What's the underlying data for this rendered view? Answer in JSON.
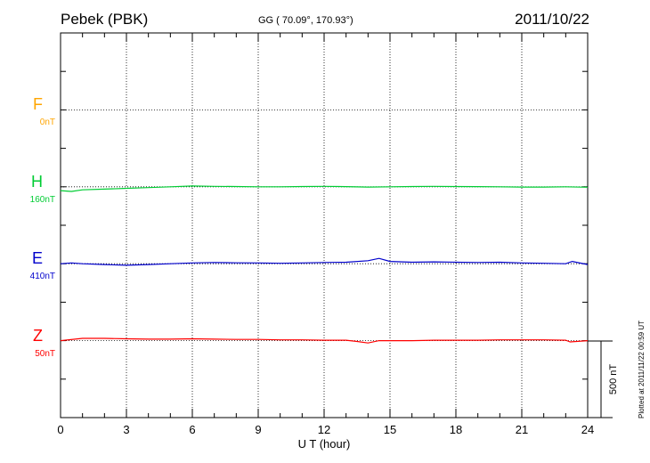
{
  "header": {
    "station": "Pebek (PBK)",
    "coords": "GG ( 70.09°, 170.93°)",
    "date": "2011/10/22"
  },
  "footer": {
    "plotted": "Plotted at 2011/11/22 00:59 UT"
  },
  "chart_data": {
    "type": "line",
    "title": "Pebek (PBK)",
    "xlabel": "U T (hour)",
    "ylabel": "",
    "xlim": [
      0,
      24
    ],
    "xticks": [
      "0",
      "3",
      "6",
      "9",
      "12",
      "15",
      "18",
      "21",
      "24"
    ],
    "grid": true,
    "scale_bar": {
      "label": "500 nT",
      "value_nT": 500
    },
    "components": [
      {
        "name": "F",
        "baseline_label": "0nT",
        "color": "#ffa500"
      },
      {
        "name": "H",
        "baseline_label": "160nT",
        "color": "#00cc33"
      },
      {
        "name": "E",
        "baseline_label": "410nT",
        "color": "#0000cc"
      },
      {
        "name": "Z",
        "baseline_label": "50nT",
        "color": "#ff0000"
      }
    ],
    "series": [
      {
        "name": "H",
        "x": [
          0,
          0.5,
          1,
          2,
          3,
          4,
          5,
          6,
          7,
          8,
          9,
          10,
          11,
          12,
          13,
          14,
          15,
          16,
          17,
          18,
          19,
          20,
          21,
          22,
          23,
          24
        ],
        "values": [
          -25,
          -30,
          -20,
          -15,
          -10,
          -5,
          0,
          5,
          3,
          2,
          0,
          0,
          2,
          3,
          1,
          -2,
          0,
          2,
          3,
          2,
          1,
          0,
          -2,
          -2,
          0,
          -3
        ]
      },
      {
        "name": "E",
        "x": [
          0,
          0.5,
          1,
          2,
          3,
          4,
          5,
          6,
          7,
          8,
          9,
          10,
          11,
          12,
          13,
          14,
          14.5,
          15,
          16,
          17,
          18,
          19,
          20,
          21,
          22,
          23,
          23.3,
          24
        ],
        "values": [
          0,
          5,
          0,
          -5,
          -10,
          -5,
          0,
          5,
          8,
          6,
          5,
          3,
          5,
          8,
          10,
          20,
          35,
          15,
          10,
          12,
          10,
          8,
          10,
          5,
          3,
          0,
          15,
          -5
        ]
      },
      {
        "name": "Z",
        "x": [
          0,
          1,
          2,
          3,
          4,
          5,
          6,
          7,
          8,
          9,
          10,
          11,
          12,
          13,
          13.5,
          14,
          14.5,
          15,
          16,
          17,
          18,
          19,
          20,
          21,
          22,
          23,
          23.2,
          24
        ],
        "values": [
          0,
          15,
          15,
          12,
          10,
          10,
          12,
          10,
          8,
          8,
          5,
          5,
          3,
          3,
          -5,
          -15,
          0,
          0,
          0,
          3,
          3,
          3,
          5,
          5,
          5,
          3,
          -8,
          0
        ]
      }
    ]
  }
}
